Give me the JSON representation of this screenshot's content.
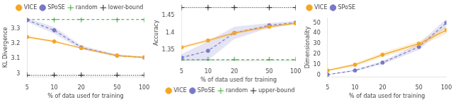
{
  "chart_data": [
    {
      "type": "line",
      "log": "x",
      "grid": false,
      "legend": "upper right",
      "xlabel": "% of data used for training",
      "ylabel": "KL Divergence",
      "x": [
        5,
        10,
        20,
        50,
        100
      ],
      "xlim": [
        5,
        100
      ],
      "xticks": [
        5,
        10,
        20,
        50,
        100
      ],
      "ylim": [
        2.975,
        3.375
      ],
      "yticks": [
        3,
        3.1,
        3.2,
        3.3
      ],
      "series": [
        {
          "name": "VICE",
          "color": "#f5a623",
          "marker": "circle",
          "line_style": "solid",
          "values": [
            3.245,
            3.215,
            3.17,
            3.12,
            3.108
          ],
          "std": [
            0.008,
            0.007,
            0.005,
            0.004,
            0.004
          ]
        },
        {
          "name": "SPoSE",
          "color": "#7878c8",
          "marker": "square",
          "line_style": "dashed",
          "values": [
            3.358,
            3.29,
            3.175,
            3.12,
            3.108
          ],
          "std": [
            0.012,
            0.022,
            0.013,
            0.008,
            0.006
          ]
        },
        {
          "name": "random",
          "color": "#3a3",
          "marker": "cross",
          "line_style": "dashed",
          "values": [
            3.362,
            3.362,
            3.362,
            3.362,
            3.362
          ]
        },
        {
          "name": "lower-bound",
          "color": "#222222",
          "marker": "cross",
          "line_style": "dotted",
          "values": [
            2.988,
            2.988,
            2.988,
            2.988,
            2.988
          ]
        }
      ]
    },
    {
      "type": "line",
      "log": "x",
      "grid": false,
      "legend": "lower right",
      "xlabel": "% of data used for training",
      "ylabel": "Accuracy",
      "x": [
        5,
        10,
        20,
        50,
        100
      ],
      "xlim": [
        5,
        100
      ],
      "xticks": [
        5,
        10,
        20,
        50,
        100
      ],
      "ylim": [
        1.318,
        1.482
      ],
      "yticks": [
        1.35,
        1.4,
        1.45
      ],
      "series": [
        {
          "name": "VICE",
          "color": "#f5a623",
          "marker": "circle",
          "line_style": "solid",
          "values": [
            1.358,
            1.378,
            1.4,
            1.418,
            1.428
          ],
          "std": [
            0.004,
            0.004,
            0.004,
            0.004,
            0.003
          ]
        },
        {
          "name": "SPoSE",
          "color": "#7878c8",
          "marker": "square",
          "line_style": "dashed",
          "values": [
            1.328,
            1.348,
            1.4,
            1.422,
            1.43
          ],
          "std": [
            0.01,
            0.028,
            0.018,
            0.007,
            0.005
          ]
        },
        {
          "name": "random",
          "color": "#3a3",
          "marker": "cross",
          "line_style": "dashed",
          "values": [
            1.322,
            1.322,
            1.322,
            1.322,
            1.322
          ]
        },
        {
          "name": "upper-bound",
          "color": "#222222",
          "marker": "cross",
          "line_style": "dotted",
          "values": [
            1.474,
            1.474,
            1.474,
            1.474,
            1.474
          ]
        }
      ]
    },
    {
      "type": "line",
      "log": "x",
      "grid": false,
      "legend": "upper left",
      "xlabel": "% of data used for training",
      "ylabel": "Dimensionality",
      "x": [
        5,
        10,
        20,
        50,
        100
      ],
      "xlim": [
        5,
        100
      ],
      "xticks": [
        5,
        10,
        20,
        50,
        100
      ],
      "ylim": [
        -2,
        55
      ],
      "yticks": [
        0,
        10,
        20,
        30,
        40,
        50
      ],
      "series": [
        {
          "name": "VICE",
          "color": "#f5a623",
          "marker": "circle",
          "line_style": "solid",
          "values": [
            4.5,
            10.0,
            19.5,
            30.0,
            43.0
          ],
          "std": [
            0.8,
            1.5,
            2.0,
            2.5,
            3.5
          ]
        },
        {
          "name": "SPoSE",
          "color": "#7878c8",
          "marker": "square",
          "line_style": "dashed",
          "values": [
            0.5,
            4.5,
            12.0,
            27.0,
            50.0
          ],
          "std": [
            0.3,
            0.8,
            1.5,
            3.0,
            4.0
          ]
        }
      ]
    }
  ]
}
